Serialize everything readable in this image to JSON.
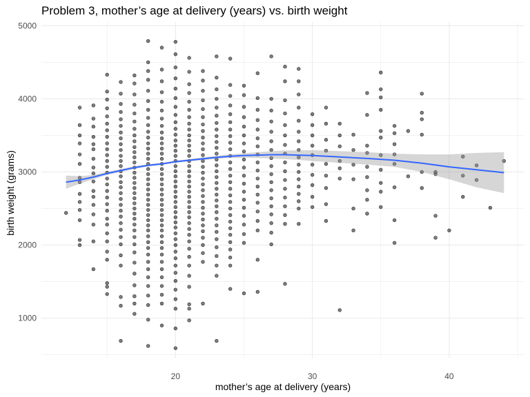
{
  "chart_data": {
    "type": "scatter",
    "title": "Problem 3, mother’s age at delivery (years) vs. birth weight",
    "xlabel": "mother’s age at delivery (years)",
    "ylabel": "birth weight (grams)",
    "xlim": [
      10.2,
      45.5
    ],
    "ylim": [
      450,
      5050
    ],
    "x_ticks": [
      20,
      30,
      40
    ],
    "y_ticks": [
      1000,
      2000,
      3000,
      4000,
      5000
    ],
    "grid": true,
    "colors": {
      "points": "#000000",
      "smooth_line": "#3366FF",
      "ribbon": "#999999",
      "grid": "#ebebeb"
    },
    "point_columns": [
      {
        "age": 12,
        "values": [
          2440
        ]
      },
      {
        "age": 13,
        "values": [
          2000,
          2070,
          2340,
          2480,
          2590,
          2700,
          2860,
          2920,
          3110,
          3240,
          3390,
          3500,
          3640,
          3880
        ]
      },
      {
        "age": 14,
        "values": [
          1670,
          2050,
          2280,
          2420,
          2550,
          2660,
          2740,
          2870,
          2980,
          3060,
          3180,
          3310,
          3380,
          3480,
          3620,
          3730,
          3910
        ]
      },
      {
        "age": 15,
        "values": [
          1330,
          1430,
          1480,
          1800,
          1910,
          2050,
          2160,
          2280,
          2360,
          2470,
          2560,
          2650,
          2740,
          2830,
          2910,
          2990,
          3070,
          3150,
          3230,
          3310,
          3390,
          3480,
          3570,
          3660,
          3760,
          3870,
          3990,
          4100,
          4330
        ]
      },
      {
        "age": 16,
        "values": [
          690,
          1170,
          1290,
          1720,
          1860,
          2010,
          2110,
          2210,
          2300,
          2390,
          2470,
          2550,
          2630,
          2710,
          2790,
          2860,
          2940,
          3010,
          3080,
          3150,
          3220,
          3300,
          3380,
          3460,
          3540,
          3630,
          3720,
          3820,
          3930,
          4070,
          4230
        ]
      },
      {
        "age": 17,
        "values": [
          1060,
          1200,
          1300,
          1450,
          1610,
          1760,
          1900,
          2010,
          2110,
          2200,
          2280,
          2360,
          2430,
          2500,
          2570,
          2640,
          2710,
          2780,
          2850,
          2920,
          2990,
          3060,
          3130,
          3200,
          3270,
          3340,
          3420,
          3500,
          3590,
          3690,
          3800,
          3920,
          4060,
          4210,
          4320
        ]
      },
      {
        "age": 18,
        "values": [
          620,
          980,
          1180,
          1310,
          1440,
          1560,
          1670,
          1770,
          1870,
          1960,
          2040,
          2120,
          2200,
          2270,
          2340,
          2410,
          2480,
          2550,
          2620,
          2690,
          2760,
          2830,
          2900,
          2970,
          3040,
          3110,
          3180,
          3250,
          3320,
          3390,
          3470,
          3550,
          3640,
          3740,
          3850,
          3970,
          4110,
          4260,
          4380,
          4500,
          4790
        ]
      },
      {
        "age": 19,
        "values": [
          900,
          1200,
          1320,
          1440,
          1560,
          1670,
          1770,
          1870,
          1960,
          2040,
          2120,
          2200,
          2270,
          2340,
          2410,
          2480,
          2550,
          2620,
          2690,
          2760,
          2830,
          2900,
          2970,
          3040,
          3110,
          3180,
          3250,
          3320,
          3390,
          3460,
          3540,
          3630,
          3730,
          3840,
          3960,
          4090,
          4240,
          4400,
          4700
        ]
      },
      {
        "age": 20,
        "values": [
          590,
          860,
          1130,
          1260,
          1390,
          1510,
          1620,
          1720,
          1820,
          1910,
          2000,
          2080,
          2160,
          2240,
          2310,
          2380,
          2450,
          2520,
          2590,
          2660,
          2730,
          2800,
          2870,
          2940,
          3010,
          3080,
          3150,
          3220,
          3290,
          3360,
          3430,
          3510,
          3590,
          3680,
          3780,
          3890,
          4010,
          4140,
          4280,
          4430,
          4610,
          4780
        ]
      },
      {
        "age": 21,
        "values": [
          970,
          1130,
          1190,
          1430,
          1580,
          1720,
          1840,
          1950,
          2050,
          2140,
          2220,
          2300,
          2380,
          2450,
          2520,
          2590,
          2660,
          2730,
          2800,
          2870,
          2940,
          3010,
          3080,
          3150,
          3220,
          3290,
          3360,
          3430,
          3500,
          3580,
          3660,
          3750,
          3850,
          3960,
          4080,
          4200,
          4370,
          4560
        ]
      },
      {
        "age": 22,
        "values": [
          1200,
          1770,
          1890,
          2000,
          2100,
          2190,
          2270,
          2350,
          2430,
          2510,
          2590,
          2670,
          2750,
          2830,
          2910,
          2990,
          3070,
          3150,
          3230,
          3310,
          3390,
          3470,
          3560,
          3650,
          3750,
          3860,
          3980,
          4110,
          4250,
          4380
        ]
      },
      {
        "age": 23,
        "values": [
          690,
          1580,
          1720,
          1850,
          1970,
          2080,
          2180,
          2270,
          2360,
          2450,
          2530,
          2610,
          2690,
          2770,
          2850,
          2930,
          3010,
          3090,
          3170,
          3250,
          3330,
          3410,
          3490,
          3580,
          3670,
          3770,
          3880,
          4000,
          4130,
          4290,
          4580
        ]
      },
      {
        "age": 24,
        "values": [
          1400,
          1720,
          1830,
          1940,
          2040,
          2140,
          2230,
          2320,
          2410,
          2500,
          2590,
          2680,
          2770,
          2860,
          2950,
          3040,
          3130,
          3220,
          3310,
          3400,
          3490,
          3580,
          3680,
          3790,
          3910,
          4040,
          4190,
          4550
        ]
      },
      {
        "age": 25,
        "values": [
          1340,
          2030,
          2150,
          2280,
          2400,
          2510,
          2620,
          2730,
          2840,
          2950,
          3060,
          3170,
          3280,
          3390,
          3500,
          3620,
          3750,
          3890,
          4050,
          4180
        ]
      },
      {
        "age": 26,
        "values": [
          1360,
          1800,
          2200,
          2330,
          2460,
          2580,
          2690,
          2800,
          2910,
          3020,
          3130,
          3240,
          3350,
          3460,
          3580,
          3710,
          3850,
          4010,
          4350
        ]
      },
      {
        "age": 27,
        "values": [
          2010,
          2170,
          2300,
          2420,
          2530,
          2640,
          2750,
          2860,
          2970,
          3080,
          3190,
          3300,
          3420,
          3550,
          3690,
          3840,
          4000,
          4580
        ]
      },
      {
        "age": 28,
        "values": [
          1470,
          2290,
          2410,
          2530,
          2650,
          2770,
          2890,
          3010,
          3130,
          3250,
          3370,
          3500,
          3640,
          3800,
          3980,
          4240,
          4440
        ]
      },
      {
        "age": 29,
        "values": [
          2290,
          2500,
          2600,
          2700,
          2800,
          2900,
          3000,
          3100,
          3200,
          3300,
          3420,
          3550,
          3700,
          3880,
          4060,
          4240,
          4410
        ]
      },
      {
        "age": 30,
        "values": [
          2520,
          2660,
          2820,
          2960,
          3100,
          3230,
          3360,
          3500,
          3640,
          3790
        ]
      },
      {
        "age": 31,
        "values": [
          2330,
          2560,
          2780,
          2950,
          3110,
          3290,
          3440,
          3660,
          3880
        ]
      },
      {
        "age": 32,
        "values": [
          1110,
          2910,
          3050,
          3150,
          3350,
          3500,
          3660
        ]
      },
      {
        "age": 33,
        "values": [
          2200,
          2500,
          2900,
          3100,
          3300,
          3510
        ]
      },
      {
        "age": 34,
        "values": [
          2430,
          2620,
          2750,
          2930,
          3070,
          3260,
          3360,
          3780,
          4080
        ]
      },
      {
        "age": 35,
        "values": [
          2520,
          2730,
          2850,
          3030,
          3230,
          3470,
          3560,
          3850,
          4020,
          4130,
          4360
        ]
      },
      {
        "age": 36,
        "values": [
          2030,
          2340,
          2790,
          3110,
          3240,
          3380,
          3530,
          3630
        ]
      },
      {
        "age": 37,
        "values": [
          2940,
          3560
        ]
      },
      {
        "age": 38,
        "values": [
          2780,
          3000,
          3510,
          3720,
          3810,
          4070
        ]
      },
      {
        "age": 39,
        "values": [
          2100,
          2400,
          2970,
          3000
        ]
      },
      {
        "age": 40,
        "values": [
          2200
        ]
      },
      {
        "age": 41,
        "values": [
          2660,
          2950,
          3210
        ]
      },
      {
        "age": 42,
        "values": [
          2890,
          3090
        ]
      },
      {
        "age": 43,
        "values": [
          2510
        ]
      },
      {
        "age": 44,
        "values": [
          3150
        ]
      }
    ],
    "smooth": [
      {
        "x": 12,
        "y": 2860,
        "lo": 2770,
        "hi": 2950
      },
      {
        "x": 13,
        "y": 2890,
        "lo": 2840,
        "hi": 2940
      },
      {
        "x": 14,
        "y": 2930,
        "lo": 2900,
        "hi": 2960
      },
      {
        "x": 15,
        "y": 2980,
        "lo": 2960,
        "hi": 3000
      },
      {
        "x": 16,
        "y": 3020,
        "lo": 3000,
        "hi": 3040
      },
      {
        "x": 17,
        "y": 3060,
        "lo": 3040,
        "hi": 3080
      },
      {
        "x": 18,
        "y": 3090,
        "lo": 3075,
        "hi": 3105
      },
      {
        "x": 19,
        "y": 3110,
        "lo": 3095,
        "hi": 3125
      },
      {
        "x": 20,
        "y": 3140,
        "lo": 3125,
        "hi": 3155
      },
      {
        "x": 21,
        "y": 3160,
        "lo": 3145,
        "hi": 3175
      },
      {
        "x": 22,
        "y": 3180,
        "lo": 3160,
        "hi": 3200
      },
      {
        "x": 23,
        "y": 3200,
        "lo": 3180,
        "hi": 3220
      },
      {
        "x": 24,
        "y": 3215,
        "lo": 3190,
        "hi": 3240
      },
      {
        "x": 25,
        "y": 3225,
        "lo": 3195,
        "hi": 3255
      },
      {
        "x": 26,
        "y": 3230,
        "lo": 3190,
        "hi": 3270
      },
      {
        "x": 27,
        "y": 3235,
        "lo": 3185,
        "hi": 3285
      },
      {
        "x": 28,
        "y": 3235,
        "lo": 3175,
        "hi": 3295
      },
      {
        "x": 29,
        "y": 3230,
        "lo": 3165,
        "hi": 3295
      },
      {
        "x": 30,
        "y": 3225,
        "lo": 3150,
        "hi": 3300
      },
      {
        "x": 32,
        "y": 3205,
        "lo": 3125,
        "hi": 3285
      },
      {
        "x": 34,
        "y": 3185,
        "lo": 3100,
        "hi": 3270
      },
      {
        "x": 36,
        "y": 3160,
        "lo": 3070,
        "hi": 3250
      },
      {
        "x": 38,
        "y": 3120,
        "lo": 3000,
        "hi": 3240
      },
      {
        "x": 40,
        "y": 3070,
        "lo": 2900,
        "hi": 3240
      },
      {
        "x": 42,
        "y": 3030,
        "lo": 2790,
        "hi": 3260
      },
      {
        "x": 44,
        "y": 2990,
        "lo": 2710,
        "hi": 3270
      }
    ]
  }
}
